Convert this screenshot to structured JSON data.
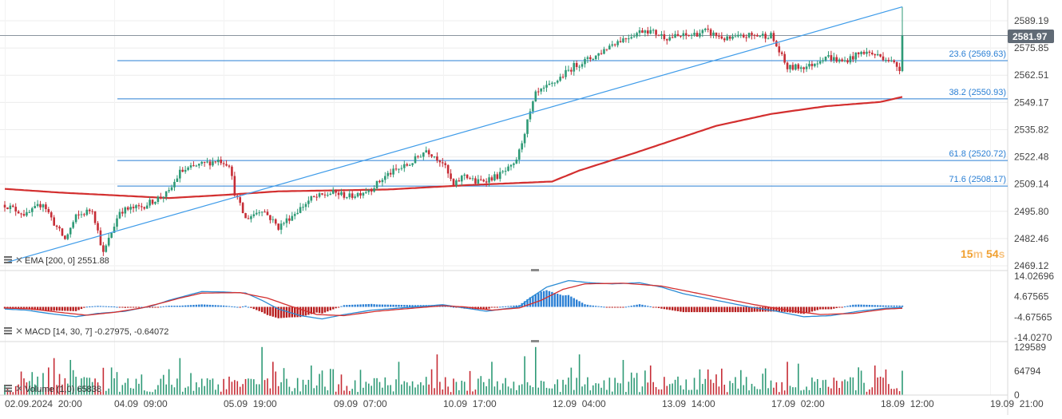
{
  "chart_data": [
    {
      "type": "candlestick",
      "panel": "price",
      "y_ticks": [
        "2589.19",
        "2575.85",
        "2562.51",
        "2549.17",
        "2535.82",
        "2522.48",
        "2509.14",
        "2495.80",
        "2482.46",
        "2469.12"
      ],
      "ylim": [
        2469.12,
        2589.19
      ],
      "current_price": "2581.97",
      "countdown": {
        "minutes": "15",
        "m": "m",
        "seconds": "54",
        "s": "s"
      },
      "indicator_label": "EMA [200, 0] 2551.88",
      "fib_levels": [
        {
          "label": "23.6 (2569.63)",
          "value": 2569.63
        },
        {
          "label": "38.2 (2550.93)",
          "value": 2550.93
        },
        {
          "label": "61.8 (2520.72)",
          "value": 2520.72
        },
        {
          "label": "71.6 (2508.17)",
          "value": 2508.17
        }
      ],
      "trend_line": {
        "start": {
          "bar": 0,
          "price": 2470.5
        },
        "end": {
          "bar": "last",
          "price": 2596.0
        }
      },
      "ema_anchors": [
        [
          0,
          2506.8
        ],
        [
          20,
          2505.0
        ],
        [
          60,
          2502.3
        ],
        [
          80,
          2503.8
        ],
        [
          100,
          2505.6
        ],
        [
          140,
          2506.5
        ],
        [
          170,
          2508.7
        ],
        [
          200,
          2510.4
        ],
        [
          210,
          2515.8
        ],
        [
          230,
          2524.3
        ],
        [
          260,
          2537.7
        ],
        [
          280,
          2543.5
        ],
        [
          300,
          2547.3
        ],
        [
          320,
          2549.4
        ],
        [
          328,
          2551.88
        ]
      ],
      "close_anchors": [
        [
          0,
          2499
        ],
        [
          8,
          2494
        ],
        [
          14,
          2500
        ],
        [
          18,
          2490
        ],
        [
          22,
          2482
        ],
        [
          26,
          2493
        ],
        [
          32,
          2497
        ],
        [
          36,
          2475
        ],
        [
          42,
          2496
        ],
        [
          50,
          2498
        ],
        [
          60,
          2505
        ],
        [
          64,
          2515
        ],
        [
          70,
          2518
        ],
        [
          78,
          2521
        ],
        [
          82,
          2519
        ],
        [
          84,
          2505
        ],
        [
          88,
          2492
        ],
        [
          94,
          2497
        ],
        [
          100,
          2488
        ],
        [
          106,
          2495
        ],
        [
          112,
          2502
        ],
        [
          120,
          2505
        ],
        [
          126,
          2503
        ],
        [
          134,
          2507
        ],
        [
          140,
          2514
        ],
        [
          148,
          2519
        ],
        [
          154,
          2526
        ],
        [
          160,
          2520
        ],
        [
          164,
          2508
        ],
        [
          168,
          2514
        ],
        [
          172,
          2510
        ],
        [
          180,
          2513
        ],
        [
          186,
          2518
        ],
        [
          188,
          2525
        ],
        [
          190,
          2535
        ],
        [
          194,
          2553
        ],
        [
          200,
          2558
        ],
        [
          208,
          2567
        ],
        [
          216,
          2572
        ],
        [
          222,
          2578
        ],
        [
          234,
          2585
        ],
        [
          242,
          2581
        ],
        [
          250,
          2582
        ],
        [
          256,
          2584
        ],
        [
          264,
          2580
        ],
        [
          272,
          2582
        ],
        [
          280,
          2582
        ],
        [
          286,
          2566
        ],
        [
          294,
          2567
        ],
        [
          300,
          2572
        ],
        [
          306,
          2569
        ],
        [
          314,
          2574
        ],
        [
          322,
          2571
        ],
        [
          327,
          2566
        ],
        [
          328,
          2581.97
        ]
      ]
    },
    {
      "type": "histogram",
      "panel": "macd",
      "indicator_label": "MACD [14, 30, 7] -0.27975, -0.64072",
      "y_ticks": [
        "14.02696",
        "4.67565",
        "-4.67565",
        "-14.0270"
      ],
      "ylim": [
        -14.027,
        14.027
      ],
      "macd_anchors": [
        [
          0,
          -1
        ],
        [
          8,
          -1.5
        ],
        [
          16,
          -3
        ],
        [
          26,
          -4.5
        ],
        [
          34,
          -3
        ],
        [
          44,
          -2
        ],
        [
          54,
          0.5
        ],
        [
          60,
          3
        ],
        [
          66,
          5
        ],
        [
          72,
          7
        ],
        [
          80,
          6.8
        ],
        [
          88,
          6.3
        ],
        [
          94,
          3
        ],
        [
          100,
          -1
        ],
        [
          108,
          -4
        ],
        [
          116,
          -5.5
        ],
        [
          124,
          -3.5
        ],
        [
          134,
          -1.5
        ],
        [
          150,
          0
        ],
        [
          160,
          1
        ],
        [
          168,
          -0.5
        ],
        [
          176,
          -2
        ],
        [
          188,
          0
        ],
        [
          192,
          4
        ],
        [
          198,
          9
        ],
        [
          206,
          12
        ],
        [
          214,
          11
        ],
        [
          222,
          10.5
        ],
        [
          232,
          11
        ],
        [
          240,
          9
        ],
        [
          248,
          6
        ],
        [
          260,
          3
        ],
        [
          272,
          0
        ],
        [
          282,
          -2
        ],
        [
          292,
          -4.5
        ],
        [
          302,
          -4
        ],
        [
          312,
          -2
        ],
        [
          322,
          -0.6
        ],
        [
          328,
          -0.28
        ]
      ],
      "signal_anchors": [
        [
          0,
          -0.5
        ],
        [
          10,
          -1
        ],
        [
          20,
          -2.5
        ],
        [
          30,
          -3.8
        ],
        [
          40,
          -2.5
        ],
        [
          50,
          -0.5
        ],
        [
          58,
          2
        ],
        [
          64,
          4
        ],
        [
          72,
          6.3
        ],
        [
          86,
          6.5
        ],
        [
          96,
          4
        ],
        [
          104,
          0.5
        ],
        [
          114,
          -3.5
        ],
        [
          124,
          -4
        ],
        [
          136,
          -2
        ],
        [
          150,
          -0.5
        ],
        [
          160,
          0.5
        ],
        [
          168,
          0
        ],
        [
          178,
          -1.5
        ],
        [
          188,
          -0.5
        ],
        [
          196,
          3
        ],
        [
          204,
          8
        ],
        [
          212,
          10.5
        ],
        [
          226,
          10.8
        ],
        [
          240,
          9.5
        ],
        [
          250,
          7
        ],
        [
          262,
          4
        ],
        [
          274,
          1
        ],
        [
          286,
          -1.5
        ],
        [
          298,
          -3.5
        ],
        [
          310,
          -3
        ],
        [
          322,
          -1
        ],
        [
          328,
          -0.64
        ]
      ]
    },
    {
      "type": "bar",
      "panel": "volume",
      "indicator_label": "Volume (1,0) 65838",
      "y_ticks": [
        "129589",
        "64794",
        "0"
      ],
      "ylim": [
        0,
        129589
      ],
      "spikes": [
        [
          18,
          100000
        ],
        [
          24,
          95000
        ],
        [
          60,
          70000
        ],
        [
          64,
          100000
        ],
        [
          94,
          130000
        ],
        [
          98,
          90000
        ],
        [
          112,
          80000
        ],
        [
          120,
          70000
        ],
        [
          144,
          90000
        ],
        [
          158,
          110000
        ],
        [
          178,
          90000
        ],
        [
          190,
          105000
        ],
        [
          194,
          130000
        ],
        [
          210,
          110000
        ],
        [
          226,
          95000
        ],
        [
          236,
          80000
        ],
        [
          286,
          90000
        ],
        [
          290,
          85000
        ],
        [
          312,
          75000
        ],
        [
          318,
          80000
        ],
        [
          328,
          65838
        ]
      ],
      "x_ticks": [
        "02.09.2024  20:00",
        "04.09  09:00",
        "05.09  19:00",
        "09.09  07:00",
        "10.09  17:00",
        "12.09  04:00",
        "13.09  14:00",
        "17.09  02:00",
        "18.09  12:00",
        "19.09  21:00"
      ]
    }
  ],
  "colors": {
    "up": "#2e9a76",
    "down": "#c62d36",
    "ema": "#d32f2f",
    "fib": "#2a7fd4",
    "trend": "#3d9be9",
    "macd": "#2a8bd4",
    "signal": "#d32f2f",
    "hist_up": "#2a7fd4",
    "hist_down": "#b71c1c",
    "grid": "#ececec",
    "axis_text": "#444444",
    "price_tag": "#606a75",
    "countdown": "#f0a030"
  }
}
